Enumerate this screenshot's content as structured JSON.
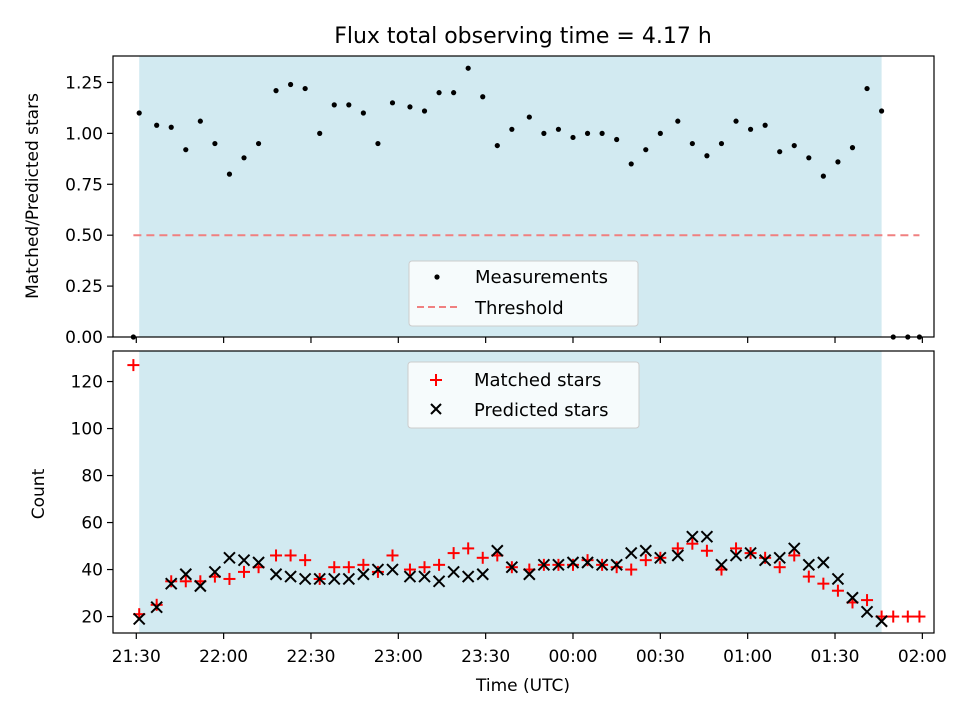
{
  "chart_data": [
    {
      "type": "scatter",
      "title": "Flux total observing time = 4.17 h",
      "xlabel": "",
      "ylabel": "Matched/Predicted stars",
      "ylim": [
        0,
        1.38
      ],
      "yticks": [
        "0.00",
        "0.25",
        "0.50",
        "0.75",
        "1.00",
        "1.25"
      ],
      "shaded_interval": [
        "21:31",
        "01:46"
      ],
      "shade_color": "#add8e6",
      "grid": false,
      "legend": {
        "placement": "bottom-center",
        "entries": [
          "Measurements",
          "Threshold"
        ]
      },
      "series": [
        {
          "name": "Measurements",
          "marker": "dot",
          "color": "#000000",
          "x": [
            "21:29",
            "21:31",
            "21:37",
            "21:42",
            "21:47",
            "21:52",
            "21:57",
            "22:02",
            "22:07",
            "22:12",
            "22:18",
            "22:23",
            "22:28",
            "22:33",
            "22:38",
            "22:43",
            "22:48",
            "22:53",
            "22:58",
            "23:04",
            "23:09",
            "23:14",
            "23:19",
            "23:24",
            "23:29",
            "23:34",
            "23:39",
            "23:45",
            "23:50",
            "23:55",
            "00:00",
            "00:05",
            "00:10",
            "00:15",
            "00:20",
            "00:25",
            "00:30",
            "00:36",
            "00:41",
            "00:46",
            "00:51",
            "00:56",
            "01:01",
            "01:06",
            "01:11",
            "01:16",
            "01:21",
            "01:26",
            "01:31",
            "01:36",
            "01:41",
            "01:46",
            "01:50",
            "01:55",
            "01:59"
          ],
          "y": [
            0.0,
            1.1,
            1.04,
            1.03,
            0.92,
            1.06,
            0.95,
            0.8,
            0.88,
            0.95,
            1.21,
            1.24,
            1.22,
            1.0,
            1.14,
            1.14,
            1.1,
            0.95,
            1.15,
            1.13,
            1.11,
            1.2,
            1.2,
            1.32,
            1.18,
            0.94,
            1.02,
            1.08,
            1.0,
            1.02,
            0.98,
            1.0,
            1.0,
            0.97,
            0.85,
            0.92,
            1.0,
            1.06,
            0.95,
            0.89,
            0.95,
            1.06,
            1.02,
            1.04,
            0.91,
            0.94,
            0.88,
            0.79,
            0.86,
            0.93,
            1.22,
            1.11,
            0.0,
            0.0,
            0.0
          ]
        },
        {
          "name": "Threshold",
          "marker": "dashed-line",
          "color": "#f08080",
          "x": [
            "21:29",
            "01:59"
          ],
          "y": [
            0.5,
            0.5
          ]
        }
      ]
    },
    {
      "type": "scatter",
      "title": "",
      "xlabel": "Time (UTC)",
      "ylabel": "Count",
      "ylim": [
        13,
        133
      ],
      "yticks": [
        "20",
        "40",
        "60",
        "80",
        "100",
        "120"
      ],
      "xticks": [
        "21:30",
        "22:00",
        "22:30",
        "23:00",
        "23:30",
        "00:00",
        "00:30",
        "01:00",
        "01:30",
        "02:00"
      ],
      "shaded_interval": [
        "21:31",
        "01:46"
      ],
      "shade_color": "#add8e6",
      "grid": false,
      "legend": {
        "placement": "top-center",
        "entries": [
          "Matched stars",
          "Predicted stars"
        ]
      },
      "series": [
        {
          "name": "Matched stars",
          "marker": "plus",
          "color": "#ff0000",
          "x": [
            "21:29",
            "21:31",
            "21:37",
            "21:42",
            "21:47",
            "21:52",
            "21:57",
            "22:02",
            "22:07",
            "22:12",
            "22:18",
            "22:23",
            "22:28",
            "22:33",
            "22:38",
            "22:43",
            "22:48",
            "22:53",
            "22:58",
            "23:04",
            "23:09",
            "23:14",
            "23:19",
            "23:24",
            "23:29",
            "23:34",
            "23:39",
            "23:45",
            "23:50",
            "23:55",
            "00:00",
            "00:05",
            "00:10",
            "00:15",
            "00:20",
            "00:25",
            "00:30",
            "00:36",
            "00:41",
            "00:46",
            "00:51",
            "00:56",
            "01:01",
            "01:06",
            "01:11",
            "01:16",
            "01:21",
            "01:26",
            "01:31",
            "01:36",
            "01:41",
            "01:46",
            "01:50",
            "01:55",
            "01:59"
          ],
          "y": [
            127,
            21,
            25,
            35,
            35,
            35,
            37,
            36,
            39,
            41,
            46,
            46,
            44,
            36,
            41,
            41,
            42,
            39,
            46,
            40,
            41,
            42,
            47,
            49,
            45,
            46,
            41,
            40,
            42,
            42,
            42,
            44,
            42,
            41,
            40,
            44,
            45,
            49,
            51,
            48,
            40,
            49,
            47,
            45,
            41,
            46,
            37,
            34,
            31,
            26,
            27,
            20,
            20,
            20,
            20
          ]
        },
        {
          "name": "Predicted stars",
          "marker": "x",
          "color": "#000000",
          "x": [
            "21:31",
            "21:37",
            "21:42",
            "21:47",
            "21:52",
            "21:57",
            "22:02",
            "22:07",
            "22:12",
            "22:18",
            "22:23",
            "22:28",
            "22:33",
            "22:38",
            "22:43",
            "22:48",
            "22:53",
            "22:58",
            "23:04",
            "23:09",
            "23:14",
            "23:19",
            "23:24",
            "23:29",
            "23:34",
            "23:39",
            "23:45",
            "23:50",
            "23:55",
            "00:00",
            "00:05",
            "00:10",
            "00:15",
            "00:20",
            "00:25",
            "00:30",
            "00:36",
            "00:41",
            "00:46",
            "00:51",
            "00:56",
            "01:01",
            "01:06",
            "01:11",
            "01:16",
            "01:21",
            "01:26",
            "01:31",
            "01:36",
            "01:41",
            "01:46"
          ],
          "y": [
            19,
            24,
            34,
            38,
            33,
            39,
            45,
            44,
            43,
            38,
            37,
            36,
            36,
            36,
            36,
            38,
            40,
            40,
            37,
            37,
            35,
            39,
            37,
            38,
            48,
            41,
            38,
            42,
            42,
            43,
            43,
            42,
            42,
            47,
            48,
            45,
            46,
            54,
            54,
            42,
            46,
            47,
            44,
            45,
            49,
            42,
            43,
            36,
            28,
            22,
            18
          ]
        }
      ]
    }
  ]
}
